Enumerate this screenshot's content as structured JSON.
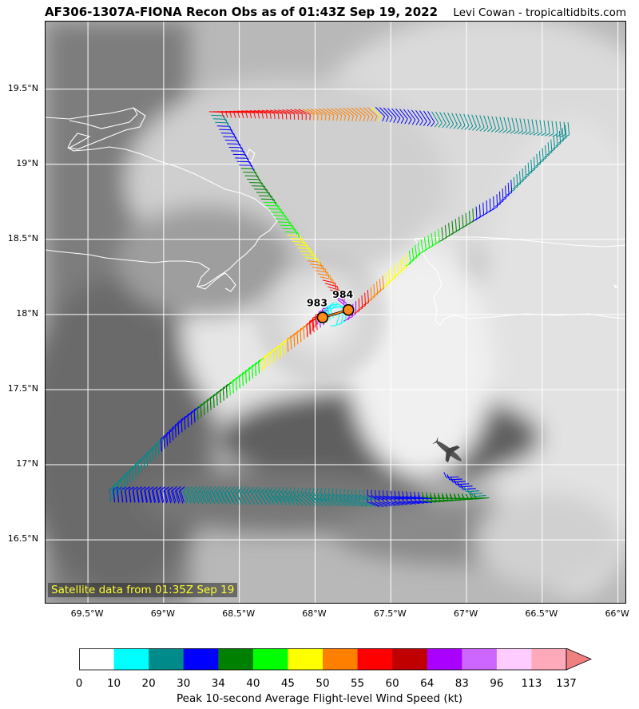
{
  "header": {
    "title": "AF306-1307A-FIONA Recon Obs as of 01:43Z Sep 19, 2022",
    "credit": "Levi Cowan - tropicaltidbits.com"
  },
  "map": {
    "extent": {
      "lon": [
        -69.78,
        -65.94
      ],
      "lat": [
        16.07,
        19.95
      ]
    },
    "satellite_label": "Satellite data from 01:35Z Sep 19",
    "lat_ticks": [
      {
        "value": 19.5,
        "label": "19.5°N"
      },
      {
        "value": 19.0,
        "label": "19°N"
      },
      {
        "value": 18.5,
        "label": "18.5°N"
      },
      {
        "value": 18.0,
        "label": "18°N"
      },
      {
        "value": 17.5,
        "label": "17.5°N"
      },
      {
        "value": 17.0,
        "label": "17°N"
      },
      {
        "value": 16.5,
        "label": "16.5°N"
      }
    ],
    "lon_ticks": [
      {
        "value": -69.5,
        "label": "69.5°W"
      },
      {
        "value": -69.0,
        "label": "69°W"
      },
      {
        "value": -68.5,
        "label": "68.5°W"
      },
      {
        "value": -68.0,
        "label": "68°W"
      },
      {
        "value": -67.5,
        "label": "67.5°W"
      },
      {
        "value": -67.0,
        "label": "67°W"
      },
      {
        "value": -66.5,
        "label": "66.5°W"
      },
      {
        "value": -66.0,
        "label": "66°W"
      }
    ],
    "pressure_obs": [
      {
        "label": "983",
        "lon": -67.95,
        "lat": 17.98
      },
      {
        "label": "984",
        "lon": -67.78,
        "lat": 18.03
      }
    ],
    "flight_track": [
      [
        -66.33,
        19.28
      ],
      [
        -66.8,
        18.8
      ],
      [
        -67.3,
        18.5
      ],
      [
        -67.75,
        18.07
      ],
      [
        -68.05,
        17.85
      ],
      [
        -68.9,
        17.2
      ],
      [
        -69.35,
        16.75
      ],
      [
        -67.55,
        16.72
      ],
      [
        -66.85,
        16.78
      ],
      [
        -67.05,
        16.92
      ],
      [
        -66.85,
        16.78
      ],
      [
        -68.3,
        16.75
      ],
      [
        -69.35,
        16.75
      ],
      [
        -68.9,
        17.2
      ],
      [
        -68.05,
        17.85
      ],
      [
        -67.85,
        18.1
      ],
      [
        -68.2,
        18.55
      ],
      [
        -68.45,
        18.9
      ],
      [
        -68.7,
        19.35
      ],
      [
        -67.6,
        19.38
      ],
      [
        -66.33,
        19.28
      ]
    ],
    "coastline_colors": {
      "land_outline": "#ffffff"
    },
    "aircraft_icon": "aircraft-icon"
  },
  "colorbar": {
    "title": "Peak 10-second Average Flight-level Wind Speed (kt)",
    "bins": [
      {
        "min": "0",
        "color": "#ffffff"
      },
      {
        "min": "10",
        "color": "#00ffff"
      },
      {
        "min": "20",
        "color": "#008b8b"
      },
      {
        "min": "30",
        "color": "#0000ff"
      },
      {
        "min": "34",
        "color": "#008000"
      },
      {
        "min": "40",
        "color": "#00ff00"
      },
      {
        "min": "45",
        "color": "#ffff00"
      },
      {
        "min": "50",
        "color": "#ff8000"
      },
      {
        "min": "55",
        "color": "#ff0000"
      },
      {
        "min": "60",
        "color": "#c00000"
      },
      {
        "min": "64",
        "color": "#aa00ff"
      },
      {
        "min": "83",
        "color": "#cc66ff"
      },
      {
        "min": "96",
        "color": "#ffccff"
      },
      {
        "min": "113",
        "color": "#ffaabb"
      }
    ],
    "last_label": "137",
    "extend_color": "#f08080"
  }
}
